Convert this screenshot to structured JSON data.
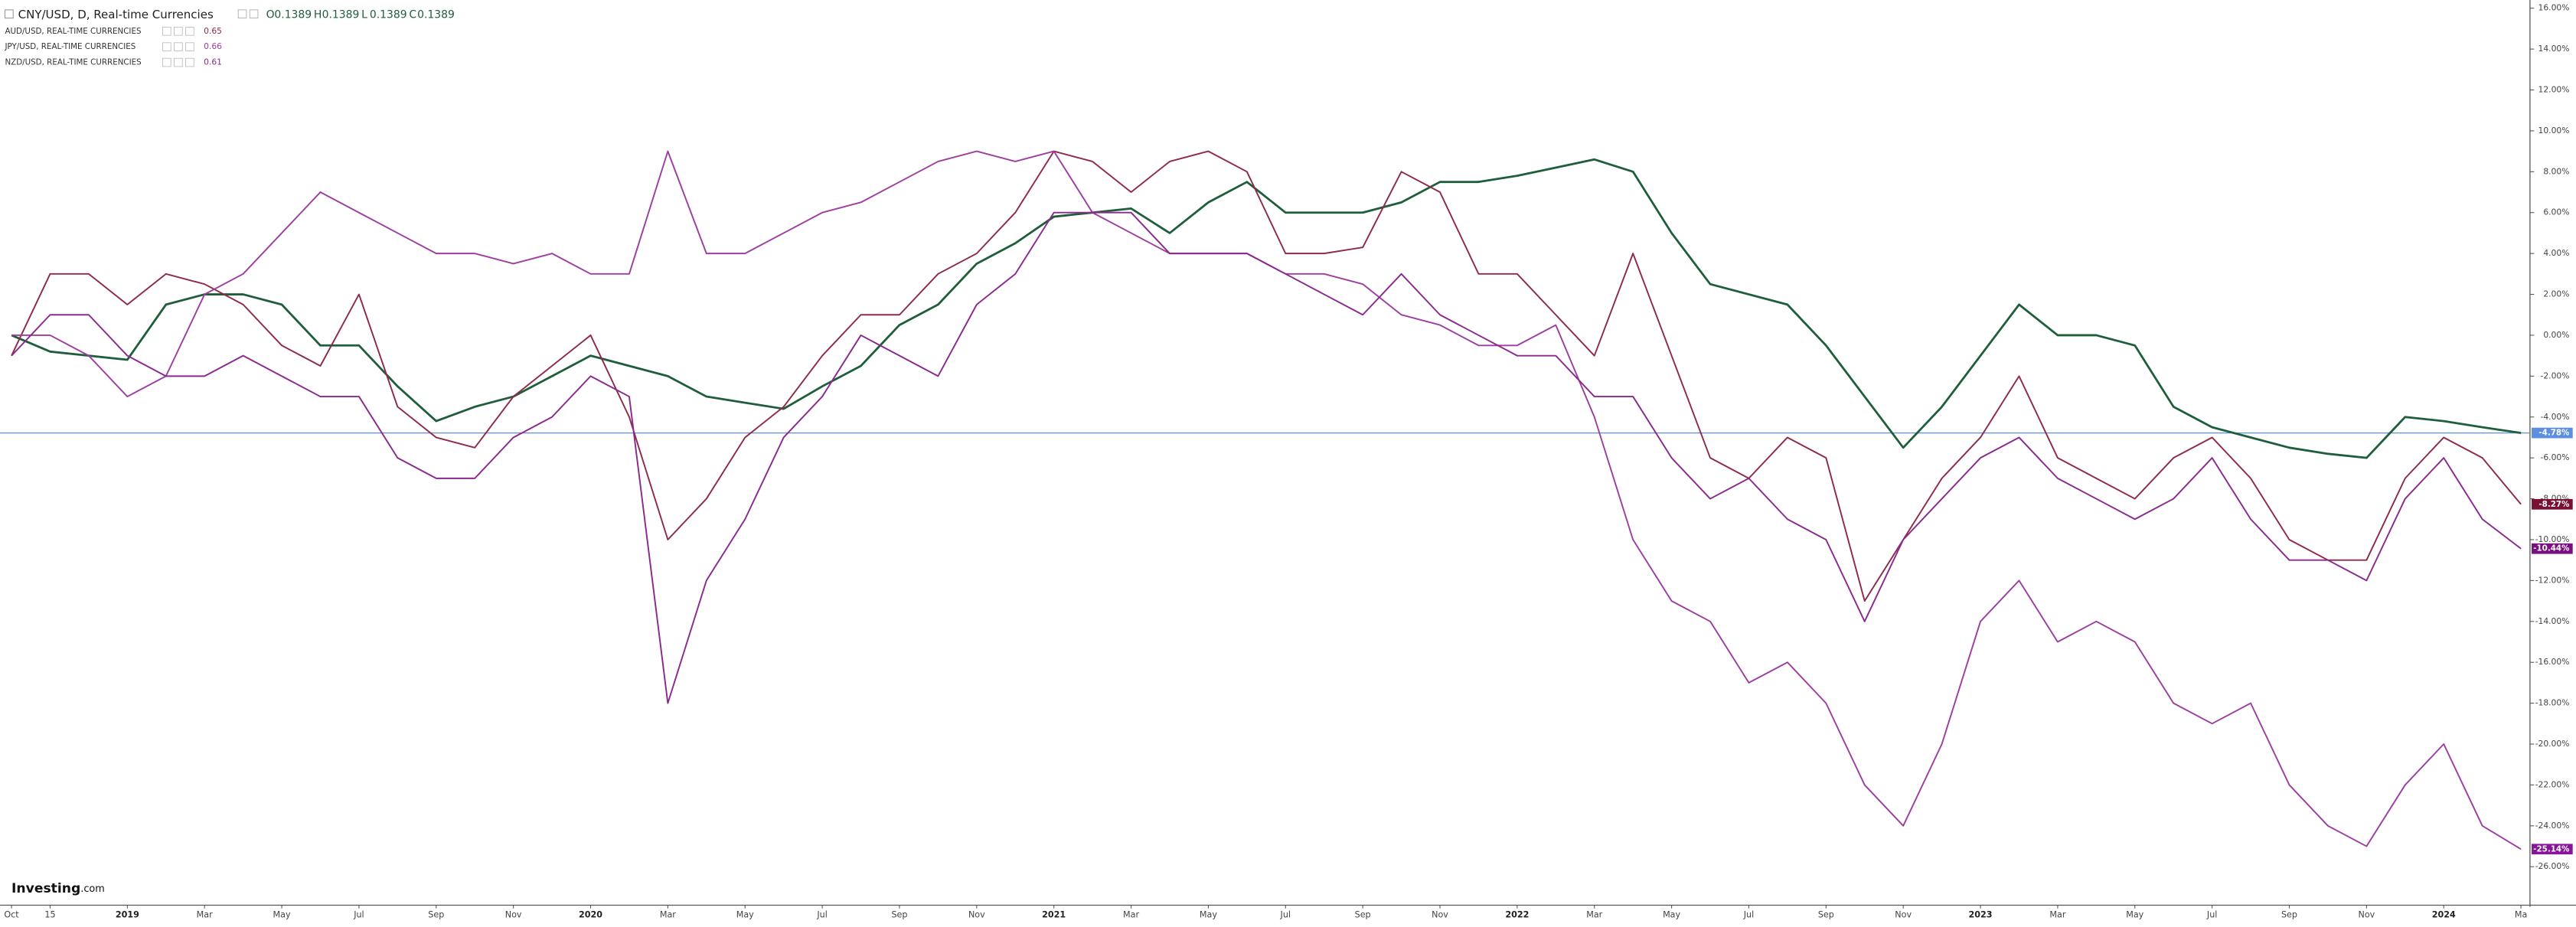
{
  "header": {
    "title": "CNY/USD, D, Real-time Currencies",
    "ohlc": [
      {
        "label": "O",
        "value": 0.1389
      },
      {
        "label": "H",
        "value": 0.1389
      },
      {
        "label": "L",
        "value": 0.1389
      },
      {
        "label": "C",
        "value": 0.1389
      }
    ]
  },
  "logo": {
    "brand": "Investing",
    "suffix": ".com"
  },
  "chart_data": {
    "type": "line",
    "categories": [
      "Oct",
      "15",
      null,
      "2019",
      null,
      "Mar",
      null,
      "May",
      null,
      "Jul",
      null,
      "Sep",
      null,
      "Nov",
      null,
      "2020",
      null,
      "Mar",
      null,
      "May",
      null,
      "Jul",
      null,
      "Sep",
      null,
      "Nov",
      null,
      "2021",
      null,
      "Mar",
      null,
      "May",
      null,
      "Jul",
      null,
      "Sep",
      null,
      "Nov",
      null,
      "2022",
      null,
      "Mar",
      null,
      "May",
      null,
      "Jul",
      null,
      "Sep",
      null,
      "Nov",
      null,
      "2023",
      null,
      "Mar",
      null,
      "May",
      null,
      "Jul",
      null,
      "Sep",
      null,
      "Nov",
      null,
      "2024",
      null,
      "Ma"
    ],
    "ylim": [
      -27.8,
      16.4
    ],
    "yticks": [
      {
        "value": 16,
        "label": "16.00%"
      },
      {
        "value": 14,
        "label": "14.00%"
      },
      {
        "value": 12,
        "label": "12.00%"
      },
      {
        "value": 10,
        "label": "10.00%"
      },
      {
        "value": 8,
        "label": "8.00%"
      },
      {
        "value": 6,
        "label": "6.00%"
      },
      {
        "value": 4,
        "label": "4.00%"
      },
      {
        "value": 2,
        "label": "2.00%"
      },
      {
        "value": 0,
        "label": "0.00%"
      },
      {
        "value": -2,
        "label": "-2.00%"
      },
      {
        "value": -4,
        "label": "-4.00%"
      },
      {
        "value": -6,
        "label": "-6.00%"
      },
      {
        "value": -8,
        "label": "-8.00%"
      },
      {
        "value": -10,
        "label": "-10.00%"
      },
      {
        "value": -12,
        "label": "-12.00%"
      },
      {
        "value": -14,
        "label": "-14.00%"
      },
      {
        "value": -16,
        "label": "-16.00%"
      },
      {
        "value": -18,
        "label": "-18.00%"
      },
      {
        "value": -20,
        "label": "-20.00%"
      },
      {
        "value": -22,
        "label": "-22.00%"
      },
      {
        "value": -24,
        "label": "-24.00%"
      },
      {
        "value": -26,
        "label": "-26.00%"
      }
    ],
    "series": [
      {
        "color": "#1f5e3a",
        "end_label": "-4.78%",
        "end_color": "#5b8fe0",
        "values": [
          0,
          -0.8,
          -1,
          -1.2,
          1.5,
          2,
          2,
          1.5,
          -0.5,
          -0.5,
          -2.5,
          -4.2,
          -3.5,
          -3,
          -2,
          -1,
          -1.5,
          -2,
          -3,
          -3.3,
          -3.6,
          -2.5,
          -1.5,
          0.5,
          1.5,
          3.5,
          4.5,
          5.8,
          6,
          6.2,
          5,
          6.5,
          7.5,
          6,
          6,
          6,
          6.5,
          7.5,
          7.5,
          7.8,
          8.2,
          8.6,
          8,
          5,
          2.5,
          2,
          1.5,
          -0.5,
          -3,
          -5.5,
          -3.5,
          -1,
          1.5,
          0,
          0,
          -0.5,
          -3.5,
          -4.5,
          -5,
          -5.5,
          -5.8,
          -6,
          -4,
          -4.2,
          -4.5,
          -4.78
        ]
      },
      {
        "name": "AUD/USD, REAL-TIME CURRENCIES",
        "legend_value": 0.65,
        "color": "#8e2a4a",
        "end_label": "-8.27%",
        "end_color": "#7a0f33",
        "values": [
          -1,
          3,
          3,
          1.5,
          3,
          2.5,
          1.5,
          -0.5,
          -1.5,
          2,
          -3.5,
          -5,
          -5.5,
          -3,
          -1.5,
          0,
          -4,
          -10,
          -8,
          -5,
          -3.5,
          -1,
          1,
          1,
          3,
          4,
          6,
          9,
          8.5,
          7,
          8.5,
          9,
          8,
          4,
          4,
          4.3,
          8,
          7,
          3,
          3,
          1,
          -1,
          4,
          -1,
          -6,
          -7,
          -5,
          -6,
          -13,
          -10,
          -7,
          -5,
          -2,
          -6,
          -7,
          -8,
          -6,
          -5,
          -7,
          -10,
          -11,
          -11,
          -7,
          -5,
          -6,
          -8.27
        ]
      },
      {
        "name": "JPY/USD, REAL-TIME CURRENCIES",
        "legend_value": 0.66,
        "color": "#9c3fa0",
        "end_label": "-25.14%",
        "end_color": "#86159a",
        "values": [
          0,
          0,
          -1,
          -3,
          -2,
          2,
          3,
          5,
          7,
          6,
          5,
          4,
          4,
          3.5,
          4,
          3,
          3,
          9,
          4,
          4,
          5,
          6,
          6.5,
          7.5,
          8.5,
          9,
          8.5,
          9,
          6,
          5,
          4,
          4,
          4,
          3,
          3,
          2.5,
          1,
          0.5,
          -0.5,
          -0.5,
          0.5,
          -4,
          -10,
          -13,
          -14,
          -17,
          -16,
          -18,
          -22,
          -24,
          -20,
          -14,
          -12,
          -15,
          -14,
          -15,
          -18,
          -19,
          -18,
          -22,
          -24,
          -25,
          -22,
          -20,
          -24,
          -25.14
        ]
      },
      {
        "name": "NZD/USD, REAL-TIME CURRENCIES",
        "legend_value": 0.61,
        "color": "#8a2a8e",
        "end_label": "-10.44%",
        "end_color": "#7a1080",
        "values": [
          -1,
          1,
          1,
          -1,
          -2,
          -2,
          -1,
          -2,
          -3,
          -3,
          -6,
          -7,
          -7,
          -5,
          -4,
          -2,
          -3,
          -18,
          -12,
          -9,
          -5,
          -3,
          0,
          -1,
          -2,
          1.5,
          3,
          6,
          6,
          6,
          4,
          4,
          4,
          3,
          2,
          1,
          3,
          1,
          0,
          -1,
          -1,
          -3,
          -3,
          -6,
          -8,
          -7,
          -9,
          -10,
          -14,
          -10,
          -8,
          -6,
          -5,
          -7,
          -8,
          -9,
          -8,
          -6,
          -9,
          -11,
          -11,
          -12,
          -8,
          -6,
          -9,
          -10.44
        ]
      }
    ]
  }
}
